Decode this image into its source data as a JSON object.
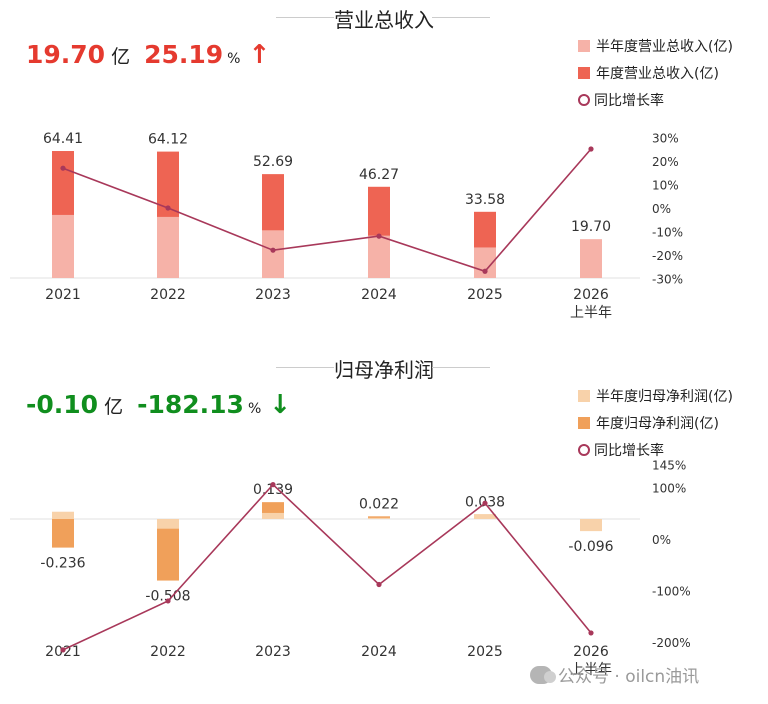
{
  "revenue": {
    "title": "营业总收入",
    "headline": {
      "value": "19.70",
      "unit": "亿",
      "pct": "25.19",
      "pct_unit": "%",
      "arrow": "↑"
    },
    "legend": [
      {
        "label": "半年度营业总收入(亿)",
        "color": "#f6b2a8",
        "kind": "box"
      },
      {
        "label": "年度营业总收入(亿)",
        "color": "#ee6453",
        "kind": "box"
      },
      {
        "label": "同比增长率",
        "color": "#a8385a",
        "kind": "ring"
      }
    ]
  },
  "profit": {
    "title": "归母净利润",
    "headline": {
      "value": "-0.10",
      "unit": "亿",
      "pct": "-182.13",
      "pct_unit": "%",
      "arrow": "↓"
    },
    "legend": [
      {
        "label": "半年度归母净利润(亿)",
        "color": "#f8d2aa",
        "kind": "box"
      },
      {
        "label": "年度归母净利润(亿)",
        "color": "#f0a05a",
        "kind": "box"
      },
      {
        "label": "同比增长率",
        "color": "#a8385a",
        "kind": "ring"
      }
    ]
  },
  "colors": {
    "up": "#e53a2f",
    "down": "#108e1e",
    "line": "#a8385a",
    "axis": "#dddddd"
  },
  "watermark": "公众号 · oilcn油讯",
  "chart_data": [
    {
      "type": "bar",
      "title": "营业总收入",
      "categories": [
        "2021",
        "2022",
        "2023",
        "2024",
        "2025",
        "2026\n上半年"
      ],
      "series": [
        {
          "name": "半年度营业总收入(亿)",
          "values": [
            32.0,
            31.0,
            24.2,
            21.5,
            15.5,
            19.7
          ]
        },
        {
          "name": "年度营业总收入(亿)",
          "values": [
            64.41,
            64.12,
            52.69,
            46.27,
            33.58,
            null
          ]
        },
        {
          "name": "同比增长率",
          "axis": "right",
          "values": [
            17.0,
            0.0,
            -18.0,
            -12.0,
            -27.0,
            25.19
          ]
        }
      ],
      "data_labels": [
        "64.41",
        "64.12",
        "52.69",
        "46.27",
        "33.58",
        "19.70"
      ],
      "ylim": [
        0,
        70
      ],
      "y2lim": [
        -35,
        35
      ],
      "y2ticks": [
        "30%",
        "20%",
        "10%",
        "0%",
        "-10%",
        "-20%",
        "-30%"
      ],
      "y2tick_values": [
        30,
        20,
        10,
        0,
        -10,
        -20,
        -30
      ]
    },
    {
      "type": "bar",
      "title": "归母净利润",
      "categories": [
        "2021",
        "2022",
        "2023",
        "2024",
        "2025",
        "2026\n上半年"
      ],
      "series": [
        {
          "name": "半年度归母净利润(亿)",
          "values": [
            0.06,
            -0.08,
            0.05,
            0.01,
            0.04,
            -0.1
          ]
        },
        {
          "name": "年度归母净利润(亿)",
          "values": [
            -0.236,
            -0.508,
            0.139,
            0.022,
            0.038,
            null
          ]
        },
        {
          "name": "同比增长率",
          "axis": "right",
          "values": [
            -215,
            -120,
            106,
            -88,
            70,
            -182.13
          ]
        }
      ],
      "data_labels": [
        "-0.236",
        "-0.508",
        "0.139",
        "0.022",
        "0.038",
        "-0.096"
      ],
      "ylim": [
        -0.85,
        0.85
      ],
      "y2lim": [
        -225,
        150
      ],
      "y2ticks": [
        "145%",
        "100%",
        "0%",
        "-100%",
        "-200%"
      ],
      "y2tick_values": [
        145,
        100,
        0,
        -100,
        -200
      ]
    }
  ]
}
